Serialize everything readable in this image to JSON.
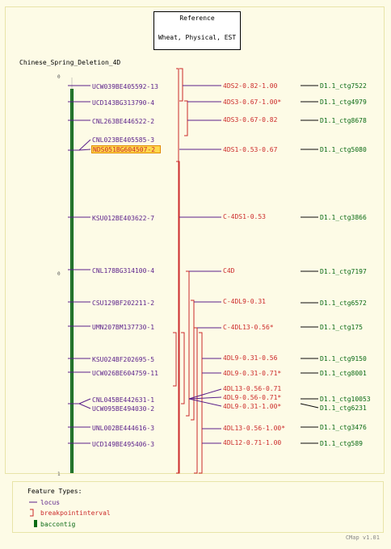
{
  "reference": {
    "line1": "Reference",
    "line2": "Wheat, Physical, EST"
  },
  "map_title": "Chinese_Spring_Deletion_4D",
  "axis": {
    "start": "0",
    "mid": "0",
    "end": "1"
  },
  "colors": {
    "background": "#fdfbe6",
    "border": "#e8e4a8",
    "locus": "#5a1f8a",
    "breakpoint": "#cc2a2a",
    "contig": "#0a6a14",
    "highlight_fill": "#ffd84d",
    "highlight_border": "#e08a00"
  },
  "loci": [
    {
      "label": "UCW039BE405592-13",
      "highlighted": false
    },
    {
      "label": "UCD143BG313790-4",
      "highlighted": false
    },
    {
      "label": "CNL263BE446522-2",
      "highlighted": false
    },
    {
      "label": "CNL023BE405585-3",
      "highlighted": false
    },
    {
      "label": "NDS051BG604507-2",
      "highlighted": true
    },
    {
      "label": "KSU012BE403622-7",
      "highlighted": false
    },
    {
      "label": "CNL178BG314100-4",
      "highlighted": false
    },
    {
      "label": "CSU129BF202211-2",
      "highlighted": false
    },
    {
      "label": "UMN207BM137730-1",
      "highlighted": false
    },
    {
      "label": "KSU024BF202695-5",
      "highlighted": false
    },
    {
      "label": "UCW026BE604759-11",
      "highlighted": false
    },
    {
      "label": "CNL045BE442631-1",
      "highlighted": false
    },
    {
      "label": "UCW095BE494030-2",
      "highlighted": false
    },
    {
      "label": "UNL002BE444616-3",
      "highlighted": false
    },
    {
      "label": "UCD149BE495406-3",
      "highlighted": false
    }
  ],
  "breakpoints": [
    {
      "label": "4DS2-0.82-1.00"
    },
    {
      "label": "4DS3-0.67-1.00*"
    },
    {
      "label": "4DS3-0.67-0.82"
    },
    {
      "label": "4DS1-0.53-0.67"
    },
    {
      "label": "C-4DS1-0.53"
    },
    {
      "label": "C4D"
    },
    {
      "label": "C-4DL9-0.31"
    },
    {
      "label": "C-4DL13-0.56*"
    },
    {
      "label": "4DL9-0.31-0.56"
    },
    {
      "label": "4DL9-0.31-0.71*"
    },
    {
      "label": "4DL13-0.56-0.71"
    },
    {
      "label": "4DL9-0.56-0.71*"
    },
    {
      "label": "4DL9-0.31-1.00*"
    },
    {
      "label": "4DL13-0.56-1.00*"
    },
    {
      "label": "4DL12-0.71-1.00"
    }
  ],
  "contigs": [
    {
      "label": "D1.1_ctg7522"
    },
    {
      "label": "D1.1_ctg4979"
    },
    {
      "label": "D1.1_ctg8678"
    },
    {
      "label": "D1.1_ctg5080"
    },
    {
      "label": "D1.1_ctg3866"
    },
    {
      "label": "D1.1_ctg7197"
    },
    {
      "label": "D1.1_ctg6572"
    },
    {
      "label": "D1.1_ctg175"
    },
    {
      "label": "D1.1_ctg9150"
    },
    {
      "label": "D1.1_ctg8001"
    },
    {
      "label": "D1.1_ctg10053"
    },
    {
      "label": "D1.1_ctg6231"
    },
    {
      "label": "D1.1_ctg3476"
    },
    {
      "label": "D1.1_ctg589"
    }
  ],
  "legend": {
    "title": "Feature Types:",
    "items": [
      {
        "label": "locus",
        "icon": "locus-line-icon"
      },
      {
        "label": "breakpointinterval",
        "icon": "bracket-icon"
      },
      {
        "label": "baccontig",
        "icon": "contig-bar-icon"
      }
    ]
  },
  "version": "CMap v1.01"
}
